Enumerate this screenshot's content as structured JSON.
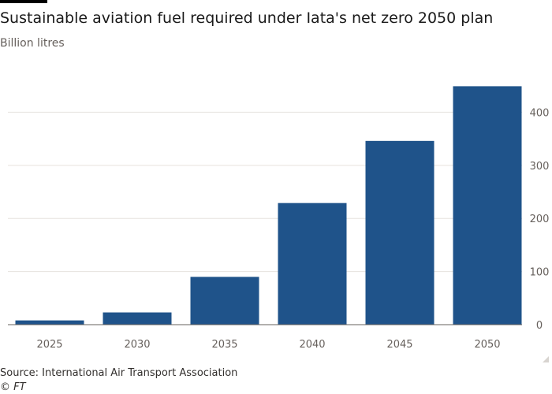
{
  "header": {
    "title": "Sustainable aviation fuel required under Iata's net zero 2050 plan",
    "subtitle": "Billion litres"
  },
  "footer": {
    "source": "Source: International Air Transport Association",
    "credit": "© FT"
  },
  "colors": {
    "bar": "#1f538a",
    "brand_rule": "#000000"
  },
  "chart_data": {
    "type": "bar",
    "title": "Sustainable aviation fuel required under Iata's net zero 2050 plan",
    "ylabel": "Billion litres",
    "xlabel": "",
    "categories": [
      "2025",
      "2030",
      "2035",
      "2040",
      "2045",
      "2050"
    ],
    "values": [
      8,
      23,
      90,
      229,
      346,
      449
    ],
    "ylim": [
      0,
      460
    ],
    "yticks": [
      0,
      100,
      200,
      300,
      400
    ],
    "grid": true,
    "y_axis_side": "right"
  }
}
